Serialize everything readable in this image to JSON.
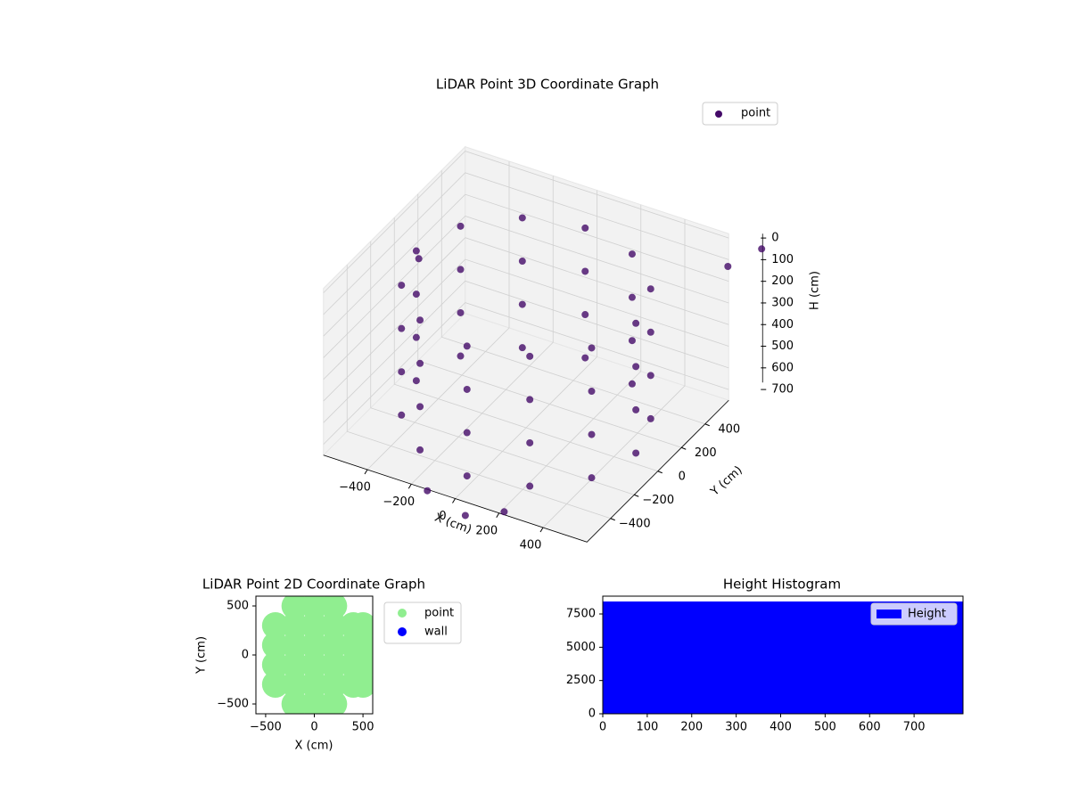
{
  "chart_data": [
    {
      "type": "scatter3d",
      "title": "LiDAR Point 3D Coordinate Graph",
      "xlabel": "X (cm)",
      "ylabel": "Y (cm)",
      "zlabel": "H (cm)",
      "xlim": [
        -600,
        600
      ],
      "ylim": [
        -600,
        600
      ],
      "zlim": [
        750,
        -20
      ],
      "xticks": [
        {
          "value": -400,
          "label": "−400"
        },
        {
          "value": -200,
          "label": "−200"
        },
        0,
        200,
        400
      ],
      "yticks": [
        {
          "value": -400,
          "label": "−400"
        },
        {
          "value": -200,
          "label": "−200"
        },
        0,
        200,
        400
      ],
      "zticks": [
        0,
        100,
        200,
        300,
        400,
        500,
        600,
        700
      ],
      "grid": true,
      "legend": "upper right",
      "series": [
        {
          "name": "point",
          "color": "#440a68",
          "x": [
            500,
            500,
            500,
            500,
            433,
            433,
            433,
            433,
            250,
            250,
            250,
            250,
            0,
            0,
            0,
            0,
            -250,
            -250,
            -250,
            -250,
            -433,
            -433,
            -433,
            -433,
            -500,
            -500,
            -500,
            -500,
            -433,
            -433,
            -433,
            -433,
            -250,
            -250,
            -250,
            -250,
            0,
            0,
            0,
            0,
            250,
            250,
            250,
            250,
            433,
            433,
            433,
            433,
            -650,
            -100,
            100,
            250,
            650,
            750
          ],
          "y": [
            0,
            0,
            0,
            0,
            250,
            250,
            250,
            250,
            433,
            433,
            433,
            433,
            500,
            500,
            500,
            500,
            433,
            433,
            433,
            433,
            250,
            250,
            250,
            250,
            0,
            0,
            0,
            0,
            -250,
            -250,
            -250,
            -250,
            -433,
            -433,
            -433,
            -433,
            -500,
            -500,
            -500,
            -500,
            -433,
            -433,
            -433,
            -433,
            -250,
            -250,
            -250,
            -250,
            300,
            -650,
            -700,
            -650,
            500,
            600
          ],
          "z": [
            100,
            300,
            500,
            700,
            100,
            300,
            500,
            700,
            100,
            300,
            500,
            700,
            100,
            300,
            500,
            700,
            100,
            300,
            500,
            700,
            100,
            300,
            500,
            700,
            100,
            300,
            500,
            700,
            100,
            300,
            500,
            700,
            100,
            300,
            500,
            700,
            100,
            300,
            500,
            700,
            100,
            300,
            500,
            700,
            100,
            300,
            500,
            700,
            350,
            720,
            740,
            700,
            60,
            0
          ]
        }
      ]
    },
    {
      "type": "scatter",
      "title": "LiDAR Point 2D Coordinate Graph",
      "xlabel": "X (cm)",
      "ylabel": "Y (cm)",
      "xlim": [
        -600,
        600
      ],
      "ylim": [
        -600,
        600
      ],
      "xticks": [
        {
          "value": -500,
          "label": "−500"
        },
        0,
        500
      ],
      "yticks": [
        {
          "value": -500,
          "label": "−500"
        },
        0,
        500
      ],
      "legend": "outside right",
      "series": [
        {
          "name": "point",
          "color": "#90ee90",
          "x": [
            -400,
            -400,
            -400,
            -400,
            -200,
            -200,
            -200,
            -200,
            -200,
            -200,
            0,
            0,
            0,
            0,
            0,
            0,
            200,
            200,
            200,
            200,
            200,
            200,
            400,
            400,
            400,
            400,
            500,
            500,
            500,
            500
          ],
          "y": [
            -300,
            -100,
            100,
            300,
            -500,
            -300,
            -100,
            100,
            300,
            500,
            -500,
            -300,
            -100,
            100,
            300,
            500,
            -500,
            -300,
            -100,
            100,
            300,
            500,
            -300,
            -100,
            100,
            300,
            -300,
            -100,
            100,
            300
          ]
        },
        {
          "name": "wall",
          "color": "#0000ff",
          "x": [],
          "y": []
        }
      ]
    },
    {
      "type": "histogram",
      "title": "Height Histogram",
      "xlim": [
        0,
        810
      ],
      "ylim": [
        0,
        8840
      ],
      "xticks": [
        0,
        100,
        200,
        300,
        400,
        500,
        600,
        700
      ],
      "yticks": [
        0,
        2500,
        5000,
        7500
      ],
      "legend": "upper right",
      "series": [
        {
          "name": "Height",
          "color": "#0000ff",
          "bins": [
            0,
            81,
            162,
            243,
            324,
            405,
            486,
            567,
            648,
            729,
            810
          ],
          "values": [
            8440,
            8440,
            8440,
            8440,
            8440,
            8440,
            8440,
            8440,
            8440,
            8440
          ]
        }
      ]
    }
  ]
}
